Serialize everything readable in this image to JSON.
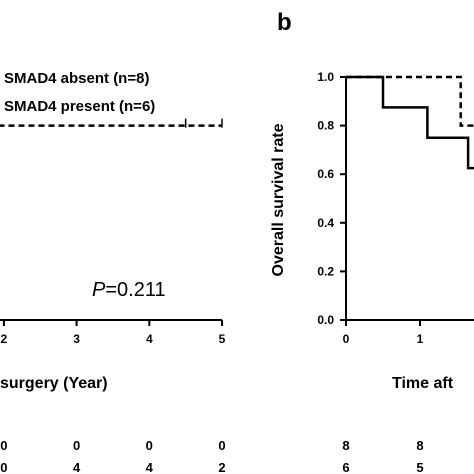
{
  "panel_b_label": "b",
  "legend": {
    "absent": "SMAD4 absent (n=8)",
    "present": "SMAD4 present (n=6)"
  },
  "p_value": {
    "italic": "P",
    "text": "=0.211"
  },
  "chart_data": [
    {
      "type": "line",
      "panel": "a",
      "xlabel": "surgery (Year)",
      "x_ticks": [
        "2",
        "3",
        "4",
        "5"
      ],
      "risk_table": {
        "absent": [
          "0",
          "0",
          "0",
          "0"
        ],
        "present": [
          "0",
          "4",
          "4",
          "2"
        ]
      },
      "series": [
        {
          "name": "SMAD4 present (n=6)",
          "style": "dashed",
          "points": [
            [
              1.65,
              0.8
            ],
            [
              5.0,
              0.8
            ]
          ],
          "censor_x": [
            4.5,
            5.0
          ]
        }
      ]
    },
    {
      "type": "line",
      "panel": "b",
      "ylabel": "Overall survival rate",
      "xlabel": "Time aft",
      "ylim": [
        0.0,
        1.0
      ],
      "y_ticks": [
        "0.0",
        "0.2",
        "0.4",
        "0.6",
        "0.8",
        "1.0"
      ],
      "x_ticks": [
        "0",
        "1"
      ],
      "risk_table": {
        "absent": [
          "8",
          "8"
        ],
        "present": [
          "6",
          "5"
        ]
      },
      "series": [
        {
          "name": "SMAD4 absent (n=8)",
          "style": "solid",
          "points": [
            [
              0,
              1.0
            ],
            [
              0.5,
              1.0
            ],
            [
              0.5,
              0.875
            ],
            [
              1.1,
              0.875
            ],
            [
              1.1,
              0.75
            ],
            [
              1.65,
              0.75
            ],
            [
              1.65,
              0.625
            ],
            [
              2.0,
              0.625
            ]
          ]
        },
        {
          "name": "SMAD4 present (n=6)",
          "style": "dashed",
          "points": [
            [
              0,
              1.0
            ],
            [
              1.55,
              1.0
            ],
            [
              1.55,
              0.8
            ],
            [
              2.0,
              0.8
            ]
          ]
        }
      ]
    }
  ]
}
